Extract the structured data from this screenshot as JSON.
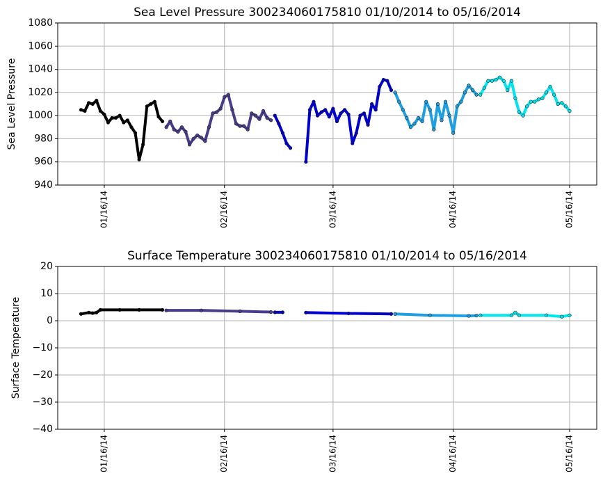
{
  "chart_data": [
    {
      "type": "line",
      "title": "Sea Level Pressure 300234060175810  01/10/2014 to 05/16/2014",
      "y_label": "Sea Level Pressure",
      "xlim": [
        "01/04/14",
        "05/23/14"
      ],
      "xticks": [
        "01/16/14",
        "02/16/14",
        "03/16/14",
        "04/16/14",
        "05/16/14"
      ],
      "ylim": [
        940,
        1080
      ],
      "yticks": [
        940,
        960,
        980,
        1000,
        1020,
        1040,
        1060,
        1080
      ],
      "grid": true,
      "series": [
        {
          "color": "#000000",
          "x": [
            "01/10/14",
            "01/11/14",
            "01/12/14",
            "01/13/14",
            "01/14/14",
            "01/15/14",
            "01/16/14",
            "01/17/14",
            "01/18/14",
            "01/19/14",
            "01/20/14",
            "01/21/14",
            "01/22/14",
            "01/23/14",
            "01/24/14",
            "01/25/14",
            "01/26/14",
            "01/27/14",
            "01/28/14",
            "01/29/14",
            "01/30/14",
            "01/31/14"
          ],
          "values": [
            1005,
            1004,
            1011,
            1010,
            1013,
            1004,
            1001,
            994,
            998,
            998,
            1000,
            994,
            996,
            990,
            985,
            962,
            975,
            1008,
            1010,
            1012,
            999,
            995
          ]
        },
        {
          "color": "#483d8b",
          "x": [
            "02/01/14",
            "02/02/14",
            "02/03/14",
            "02/04/14",
            "02/05/14",
            "02/06/14",
            "02/07/14",
            "02/08/14",
            "02/09/14",
            "02/10/14",
            "02/11/14",
            "02/12/14",
            "02/13/14",
            "02/14/14",
            "02/15/14",
            "02/16/14",
            "02/17/14",
            "02/18/14",
            "02/19/14",
            "02/20/14",
            "02/21/14",
            "02/22/14",
            "02/23/14",
            "02/24/14",
            "02/25/14",
            "02/26/14",
            "02/27/14",
            "02/28/14"
          ],
          "values": [
            990,
            995,
            988,
            986,
            990,
            986,
            975,
            980,
            983,
            981,
            978,
            990,
            1002,
            1003,
            1006,
            1016,
            1018,
            1005,
            993,
            991,
            991,
            988,
            1002,
            1000,
            997,
            1004,
            998,
            996
          ]
        },
        {
          "color": "#0000cd",
          "x": [
            "03/01/14",
            "03/02/14",
            "03/03/14",
            "03/04/14",
            "03/05/14",
            "03/07/14",
            "03/09/14",
            "03/10/14",
            "03/11/14",
            "03/12/14",
            "03/13/14",
            "03/14/14",
            "03/15/14",
            "03/16/14",
            "03/17/14",
            "03/18/14",
            "03/19/14",
            "03/20/14",
            "03/21/14",
            "03/22/14",
            "03/23/14",
            "03/24/14",
            "03/25/14",
            "03/26/14",
            "03/27/14",
            "03/28/14",
            "03/29/14",
            "03/30/14",
            "03/31/14"
          ],
          "values": [
            1000,
            993,
            985,
            976,
            972,
            null,
            960,
            1005,
            1012,
            1000,
            1003,
            1005,
            999,
            1006,
            995,
            1002,
            1005,
            1001,
            976,
            985,
            1000,
            1002,
            992,
            1010,
            1005,
            1025,
            1031,
            1030,
            1022
          ]
        },
        {
          "color": "#1e9fe0",
          "x": [
            "04/01/14",
            "04/02/14",
            "04/03/14",
            "04/04/14",
            "04/05/14",
            "04/06/14",
            "04/07/14",
            "04/08/14",
            "04/09/14",
            "04/10/14",
            "04/11/14",
            "04/12/14",
            "04/13/14",
            "04/14/14",
            "04/15/14",
            "04/16/14",
            "04/17/14",
            "04/18/14",
            "04/19/14",
            "04/20/14",
            "04/21/14",
            "04/22/14"
          ],
          "values": [
            1020,
            1012,
            1005,
            998,
            990,
            993,
            998,
            995,
            1012,
            1005,
            988,
            1010,
            996,
            1012,
            1000,
            985,
            1008,
            1012,
            1020,
            1026,
            1022,
            1018
          ]
        },
        {
          "color": "#00e5ee",
          "x": [
            "04/23/14",
            "04/24/14",
            "04/25/14",
            "04/26/14",
            "04/27/14",
            "04/28/14",
            "04/29/14",
            "04/30/14",
            "05/01/14",
            "05/02/14",
            "05/03/14",
            "05/04/14",
            "05/05/14",
            "05/06/14",
            "05/07/14",
            "05/08/14",
            "05/09/14",
            "05/10/14",
            "05/11/14",
            "05/12/14",
            "05/13/14",
            "05/14/14",
            "05/15/14",
            "05/16/14"
          ],
          "values": [
            1018,
            1024,
            1030,
            1030,
            1031,
            1033,
            1030,
            1022,
            1030,
            1015,
            1003,
            1000,
            1008,
            1012,
            1012,
            1014,
            1015,
            1020,
            1025,
            1018,
            1010,
            1011,
            1008,
            1004
          ]
        }
      ]
    },
    {
      "type": "line",
      "title": "Surface Temperature 300234060175810  01/10/2014 to 05/16/2014",
      "y_label": "Surface Temperature",
      "xlim": [
        "01/04/14",
        "05/23/14"
      ],
      "xticks": [
        "01/16/14",
        "02/16/14",
        "03/16/14",
        "04/16/14",
        "05/16/14"
      ],
      "ylim": [
        -40,
        20
      ],
      "yticks": [
        {
          "value": -40,
          "label": "−40"
        },
        {
          "value": -30,
          "label": "−30"
        },
        {
          "value": -20,
          "label": "−20"
        },
        {
          "value": -10,
          "label": "−10"
        },
        0,
        10,
        20
      ],
      "grid": true,
      "series": [
        {
          "color": "#000000",
          "x": [
            "01/10/14",
            "01/12/14",
            "01/13/14",
            "01/14/14",
            "01/15/14",
            "01/20/14",
            "01/25/14",
            "01/31/14"
          ],
          "values": [
            2.5,
            3,
            2.8,
            3,
            4,
            4,
            4,
            4
          ]
        },
        {
          "color": "#483d8b",
          "x": [
            "02/01/14",
            "02/10/14",
            "02/20/14",
            "02/28/14"
          ],
          "values": [
            3.8,
            3.8,
            3.5,
            3.2
          ]
        },
        {
          "color": "#0000cd",
          "x": [
            "03/01/14",
            "03/03/14",
            "03/06/14",
            "03/09/14",
            "03/20/14",
            "03/31/14"
          ],
          "values": [
            3.1,
            3.1,
            null,
            3,
            2.7,
            2.5
          ]
        },
        {
          "color": "#1e9fe0",
          "x": [
            "04/01/14",
            "04/10/14",
            "04/20/14",
            "04/22/14"
          ],
          "values": [
            2.5,
            2,
            1.8,
            1.9
          ]
        },
        {
          "color": "#00e5ee",
          "x": [
            "04/23/14",
            "05/01/14",
            "05/02/14",
            "05/03/14",
            "05/10/14",
            "05/14/14",
            "05/16/14"
          ],
          "values": [
            2,
            2,
            3,
            2,
            2,
            1.5,
            2
          ]
        }
      ]
    }
  ]
}
